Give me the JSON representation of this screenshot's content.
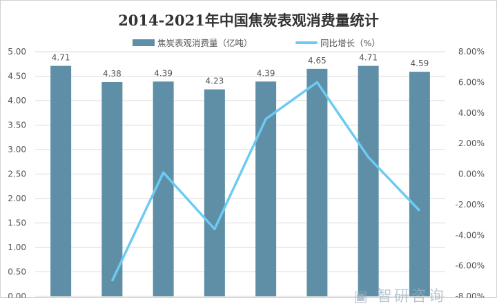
{
  "chart_data": {
    "type": "bar+line",
    "title": "2014-2021年中国焦炭表观消费量统计",
    "legend_position": "top",
    "grid": true,
    "series": [
      {
        "name": "焦炭表观消费量（亿吨）",
        "type": "bar",
        "axis": "left",
        "color": "#5e8fa6",
        "values": [
          4.71,
          4.38,
          4.39,
          4.23,
          4.39,
          4.65,
          4.71,
          4.59
        ],
        "labels": [
          "4.71",
          "4.38",
          "4.39",
          "4.23",
          "4.39",
          "4.65",
          "4.71",
          "4.59"
        ]
      },
      {
        "name": "同比增长（%）",
        "type": "line",
        "axis": "right",
        "color": "#6ccbf3",
        "values": [
          null,
          -7.0,
          0.1,
          -3.6,
          3.6,
          6.0,
          1.1,
          -2.4
        ]
      }
    ],
    "left_axis": {
      "ylim": [
        0,
        5
      ],
      "ticks": [
        "0.00",
        "0.50",
        "1.00",
        "1.50",
        "2.00",
        "2.50",
        "3.00",
        "3.50",
        "4.00",
        "4.50",
        "5.00"
      ]
    },
    "right_axis": {
      "ylim": [
        -8,
        8
      ],
      "ticks": [
        "-8.00%",
        "-6.00%",
        "-4.00%",
        "-2.00%",
        "0.00%",
        "2.00%",
        "4.00%",
        "6.00%",
        "8.00%"
      ]
    }
  },
  "watermark": "智研咨询"
}
